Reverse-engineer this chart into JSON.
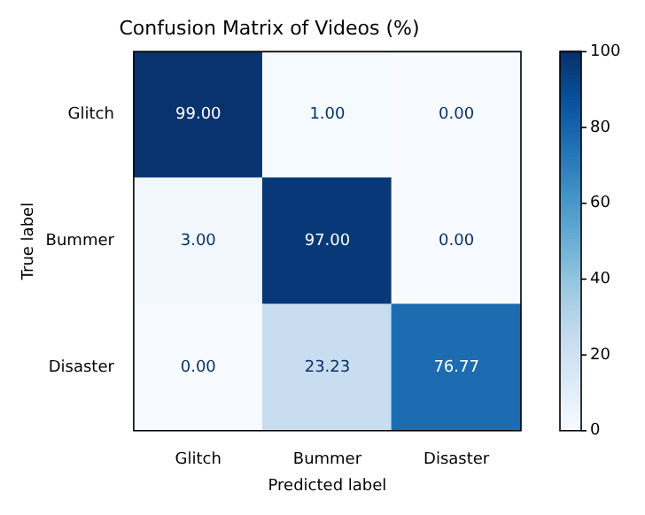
{
  "chart_data": {
    "type": "heatmap",
    "title": "Confusion Matrix of Videos (%)",
    "xlabel": "Predicted label",
    "ylabel": "True label",
    "categories": [
      "Glitch",
      "Bummer",
      "Disaster"
    ],
    "y_categories": [
      "Glitch",
      "Bummer",
      "Disaster"
    ],
    "cells": [
      [
        99.0,
        1.0,
        0.0
      ],
      [
        3.0,
        97.0,
        0.0
      ],
      [
        0.0,
        23.23,
        76.77
      ]
    ],
    "cell_labels": [
      [
        "99.00",
        "1.00",
        "0.00"
      ],
      [
        "3.00",
        "97.00",
        "0.00"
      ],
      [
        "0.00",
        "23.23",
        "76.77"
      ]
    ],
    "clim": [
      0,
      100
    ],
    "cticks": [
      0,
      20,
      40,
      60,
      80,
      100
    ]
  }
}
